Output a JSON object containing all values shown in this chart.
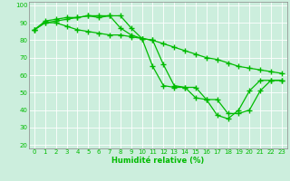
{
  "title": "",
  "xlabel": "Humidité relative (%)",
  "ylabel": "",
  "background_color": "#cceedd",
  "grid_color": "#aaddcc",
  "line_color": "#00bb00",
  "marker": "+",
  "xlim": [
    -0.5,
    23.5
  ],
  "ylim": [
    18,
    102
  ],
  "yticks": [
    20,
    30,
    40,
    50,
    60,
    70,
    80,
    90,
    100
  ],
  "xticks": [
    0,
    1,
    2,
    3,
    4,
    5,
    6,
    7,
    8,
    9,
    10,
    11,
    12,
    13,
    14,
    15,
    16,
    17,
    18,
    19,
    20,
    21,
    22,
    23
  ],
  "series": [
    [
      86,
      90,
      91,
      92,
      93,
      94,
      94,
      94,
      94,
      87,
      81,
      80,
      66,
      54,
      53,
      53,
      46,
      46,
      38,
      38,
      40,
      51,
      57,
      57
    ],
    [
      86,
      90,
      90,
      88,
      86,
      85,
      84,
      83,
      83,
      82,
      81,
      80,
      78,
      76,
      74,
      72,
      70,
      69,
      67,
      65,
      64,
      63,
      62,
      61
    ],
    [
      86,
      91,
      92,
      93,
      93,
      94,
      93,
      94,
      87,
      83,
      81,
      65,
      54,
      53,
      53,
      47,
      46,
      37,
      35,
      40,
      51,
      57,
      57,
      57
    ]
  ]
}
